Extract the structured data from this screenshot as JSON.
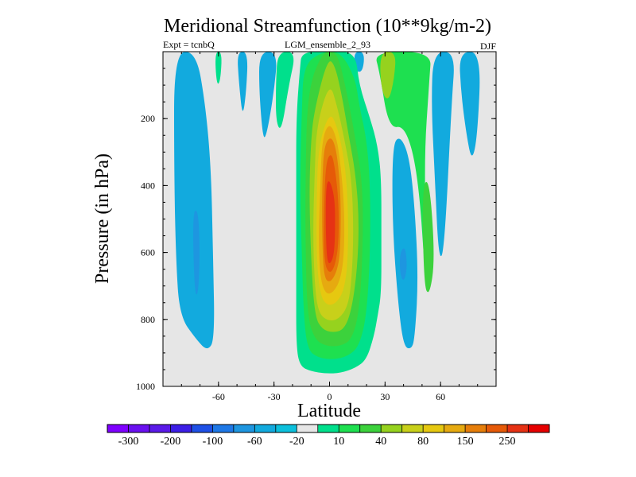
{
  "chart_data": {
    "type": "contour",
    "title": "Meridional Streamfunction (10**9kg/m-2)",
    "subtitle_left": "Expt = tcnbQ",
    "subtitle_center": "LGM_ensemble_2_93",
    "subtitle_right": "DJF",
    "xlabel": "Latitude",
    "ylabel": "Pressure (in hPa)",
    "xlim": [
      -90,
      90
    ],
    "ylim": [
      1000,
      0
    ],
    "x_ticks": [
      {
        "value": -60,
        "label": "-60"
      },
      {
        "value": -30,
        "label": "-30"
      },
      {
        "value": 0,
        "label": "0"
      },
      {
        "value": 30,
        "label": "30"
      },
      {
        "value": 60,
        "label": "60"
      }
    ],
    "y_ticks": [
      {
        "value": 200,
        "label": "200"
      },
      {
        "value": 400,
        "label": "400"
      },
      {
        "value": 600,
        "label": "600"
      },
      {
        "value": 800,
        "label": "800"
      },
      {
        "value": 1000,
        "label": "1000"
      }
    ],
    "background_color": "#e6e6e6",
    "colorbar": {
      "colors": [
        "#7f00ff",
        "#6a10f0",
        "#5a1ae8",
        "#3c1ee6",
        "#1e50e6",
        "#1e78e6",
        "#1e96e0",
        "#12aade",
        "#0cc0dc",
        "#e6e6e6",
        "#00e08c",
        "#1ee050",
        "#3cd23c",
        "#96d21e",
        "#c8d01a",
        "#e6c810",
        "#e6aa10",
        "#e67e0a",
        "#e65a08",
        "#e63214",
        "#e60000"
      ],
      "labels": [
        "-300",
        "-200",
        "-100",
        "-60",
        "-20",
        "10",
        "40",
        "80",
        "150",
        "250"
      ]
    },
    "regions": [
      {
        "name": "sh-ferrel-cell",
        "color": "#12aade",
        "points": [
          [
            -84,
            0
          ],
          [
            -72,
            0
          ],
          [
            -67,
            160
          ],
          [
            -64,
            350
          ],
          [
            -63,
            600
          ],
          [
            -62,
            860
          ],
          [
            -66,
            895
          ],
          [
            -72,
            860
          ],
          [
            -81,
            790
          ],
          [
            -83,
            620
          ],
          [
            -84,
            350
          ]
        ]
      },
      {
        "name": "sh-ferrel-core",
        "color": "#1e96e0",
        "points": [
          [
            -74,
            480
          ],
          [
            -71,
            470
          ],
          [
            -70,
            600
          ],
          [
            -71,
            730
          ],
          [
            -73,
            720
          ]
        ]
      },
      {
        "name": "sh-cell-upper-a",
        "color": "#12aade",
        "points": [
          [
            -50,
            0
          ],
          [
            -44,
            0
          ],
          [
            -45,
            120
          ],
          [
            -47,
            200
          ],
          [
            -49,
            90
          ]
        ]
      },
      {
        "name": "sh-cell-upper-b",
        "color": "#12aade",
        "points": [
          [
            -38,
            0
          ],
          [
            -28,
            0
          ],
          [
            -30,
            120
          ],
          [
            -34,
            250
          ],
          [
            -36,
            260
          ],
          [
            -38,
            120
          ]
        ]
      },
      {
        "name": "sh-weak-positive-a",
        "color": "#00e08c",
        "points": [
          [
            -62,
            0
          ],
          [
            -58,
            0
          ],
          [
            -59,
            90
          ],
          [
            -61,
            100
          ]
        ]
      },
      {
        "name": "sh-weak-positive-b",
        "color": "#00e08c",
        "points": [
          [
            -28,
            0
          ],
          [
            -18,
            0
          ],
          [
            -22,
            100
          ],
          [
            -26,
            240
          ],
          [
            -29,
            210
          ],
          [
            -29,
            90
          ]
        ]
      },
      {
        "name": "nh-ferrel-cell",
        "color": "#12aade",
        "points": [
          [
            34,
            280
          ],
          [
            38,
            250
          ],
          [
            43,
            310
          ],
          [
            46,
            460
          ],
          [
            48,
            680
          ],
          [
            46,
            860
          ],
          [
            44,
            890
          ],
          [
            40,
            880
          ],
          [
            37,
            750
          ],
          [
            34,
            520
          ]
        ]
      },
      {
        "name": "nh-ferrel-core",
        "color": "#1e96e0",
        "points": [
          [
            38,
            600
          ],
          [
            41,
            580
          ],
          [
            42,
            650
          ],
          [
            40,
            690
          ],
          [
            38,
            660
          ]
        ]
      },
      {
        "name": "nh-polar-cell",
        "color": "#12aade",
        "points": [
          [
            56,
            0
          ],
          [
            68,
            0
          ],
          [
            66,
            150
          ],
          [
            62,
            600
          ],
          [
            59,
            620
          ],
          [
            57,
            390
          ],
          [
            55,
            160
          ]
        ]
      },
      {
        "name": "nh-high-lat-cell",
        "color": "#12aade",
        "points": [
          [
            70,
            0
          ],
          [
            82,
            0
          ],
          [
            80,
            250
          ],
          [
            77,
            330
          ],
          [
            74,
            250
          ],
          [
            71,
            120
          ]
        ]
      },
      {
        "name": "nh-mid-strip-cell",
        "color": "#12aade",
        "points": [
          [
            13,
            0
          ],
          [
            19,
            0
          ],
          [
            18,
            60
          ],
          [
            14,
            60
          ]
        ]
      },
      {
        "name": "nh-green-band",
        "color": "#1ee050",
        "points": [
          [
            24,
            0
          ],
          [
            55,
            0
          ],
          [
            54,
            80
          ],
          [
            51,
            330
          ],
          [
            53,
            660
          ],
          [
            52,
            700
          ],
          [
            48,
            370
          ],
          [
            41,
            220
          ],
          [
            32,
            230
          ],
          [
            27,
            60
          ]
        ]
      },
      {
        "name": "nh-green-band-light",
        "color": "#96d21e",
        "points": [
          [
            27,
            0
          ],
          [
            36,
            0
          ],
          [
            35,
            80
          ],
          [
            32,
            150
          ],
          [
            28,
            120
          ]
        ]
      },
      {
        "name": "nh-green-band-lower",
        "color": "#3cd23c",
        "points": [
          [
            50,
            400
          ],
          [
            54,
            380
          ],
          [
            57,
            620
          ],
          [
            54,
            730
          ],
          [
            51,
            700
          ]
        ]
      },
      {
        "name": "hadley-level-0",
        "color": "#00e08c",
        "points": [
          [
            -15,
            0
          ],
          [
            0,
            0
          ],
          [
            14,
            0
          ],
          [
            16,
            100
          ],
          [
            22,
            200
          ],
          [
            26,
            280
          ],
          [
            28,
            380
          ],
          [
            28,
            560
          ],
          [
            28,
            720
          ],
          [
            26,
            790
          ],
          [
            24,
            850
          ],
          [
            20,
            920
          ],
          [
            14,
            945
          ],
          [
            6,
            960
          ],
          [
            -2,
            962
          ],
          [
            -10,
            955
          ],
          [
            -16,
            940
          ],
          [
            -18,
            880
          ],
          [
            -18,
            700
          ],
          [
            -18,
            400
          ],
          [
            -18,
            200
          ],
          [
            -16,
            50
          ]
        ]
      },
      {
        "name": "hadley-level-1",
        "color": "#1ee050",
        "points": [
          [
            -14,
            40
          ],
          [
            -4,
            0
          ],
          [
            6,
            0
          ],
          [
            14,
            80
          ],
          [
            16,
            160
          ],
          [
            20,
            260
          ],
          [
            22,
            400
          ],
          [
            22,
            600
          ],
          [
            20,
            790
          ],
          [
            16,
            880
          ],
          [
            10,
            910
          ],
          [
            2,
            920
          ],
          [
            -6,
            915
          ],
          [
            -12,
            890
          ],
          [
            -14,
            780
          ],
          [
            -15,
            600
          ],
          [
            -16,
            400
          ],
          [
            -15,
            180
          ]
        ]
      },
      {
        "name": "hadley-level-2",
        "color": "#3cd23c",
        "points": [
          [
            -12,
            120
          ],
          [
            -4,
            0
          ],
          [
            3,
            0
          ],
          [
            6,
            40
          ],
          [
            10,
            140
          ],
          [
            14,
            260
          ],
          [
            18,
            400
          ],
          [
            18,
            600
          ],
          [
            16,
            780
          ],
          [
            12,
            860
          ],
          [
            6,
            880
          ],
          [
            -2,
            880
          ],
          [
            -8,
            860
          ],
          [
            -12,
            790
          ],
          [
            -13,
            580
          ],
          [
            -13,
            380
          ]
        ]
      },
      {
        "name": "hadley-level-3",
        "color": "#96d21e",
        "points": [
          [
            -8,
            170
          ],
          [
            -1,
            20
          ],
          [
            3,
            40
          ],
          [
            7,
            140
          ],
          [
            10,
            240
          ],
          [
            14,
            360
          ],
          [
            16,
            500
          ],
          [
            15,
            650
          ],
          [
            12,
            770
          ],
          [
            8,
            830
          ],
          [
            2,
            840
          ],
          [
            -4,
            830
          ],
          [
            -8,
            790
          ],
          [
            -10,
            620
          ],
          [
            -11,
            420
          ],
          [
            -10,
            260
          ]
        ]
      },
      {
        "name": "hadley-level-4",
        "color": "#c8d01a",
        "points": [
          [
            -7,
            220
          ],
          [
            0,
            90
          ],
          [
            4,
            160
          ],
          [
            8,
            260
          ],
          [
            12,
            380
          ],
          [
            13,
            540
          ],
          [
            12,
            680
          ],
          [
            10,
            760
          ],
          [
            5,
            800
          ],
          [
            -1,
            805
          ],
          [
            -6,
            780
          ],
          [
            -8,
            700
          ],
          [
            -9,
            540
          ],
          [
            -8,
            360
          ]
        ]
      },
      {
        "name": "hadley-level-5",
        "color": "#e6c810",
        "points": [
          [
            -6,
            280
          ],
          [
            0,
            180
          ],
          [
            4,
            220
          ],
          [
            8,
            320
          ],
          [
            10,
            450
          ],
          [
            10,
            620
          ],
          [
            8,
            710
          ],
          [
            4,
            750
          ],
          [
            -1,
            760
          ],
          [
            -5,
            730
          ],
          [
            -7,
            620
          ],
          [
            -7,
            440
          ]
        ]
      },
      {
        "name": "hadley-level-6",
        "color": "#e6aa10",
        "points": [
          [
            -4,
            260
          ],
          [
            0,
            210
          ],
          [
            4,
            260
          ],
          [
            6,
            340
          ],
          [
            8,
            460
          ],
          [
            8,
            600
          ],
          [
            6,
            680
          ],
          [
            2,
            720
          ],
          [
            -2,
            725
          ],
          [
            -5,
            680
          ],
          [
            -6,
            560
          ],
          [
            -5,
            400
          ]
        ]
      },
      {
        "name": "hadley-level-7",
        "color": "#e67e0a",
        "points": [
          [
            -3,
            280
          ],
          [
            1,
            250
          ],
          [
            4,
            300
          ],
          [
            6,
            420
          ],
          [
            6,
            560
          ],
          [
            5,
            640
          ],
          [
            1,
            690
          ],
          [
            -3,
            680
          ],
          [
            -4,
            560
          ],
          [
            -4,
            400
          ]
        ]
      },
      {
        "name": "hadley-level-8",
        "color": "#e65a08",
        "points": [
          [
            -2,
            330
          ],
          [
            1,
            300
          ],
          [
            3,
            350
          ],
          [
            5,
            450
          ],
          [
            5,
            570
          ],
          [
            3,
            640
          ],
          [
            0,
            665
          ],
          [
            -3,
            630
          ],
          [
            -3,
            470
          ]
        ]
      },
      {
        "name": "hadley-level-9",
        "color": "#e63214",
        "points": [
          [
            -2,
            400
          ],
          [
            0,
            380
          ],
          [
            3,
            440
          ],
          [
            3,
            560
          ],
          [
            2,
            620
          ],
          [
            -1,
            640
          ],
          [
            -2,
            560
          ]
        ]
      }
    ]
  }
}
